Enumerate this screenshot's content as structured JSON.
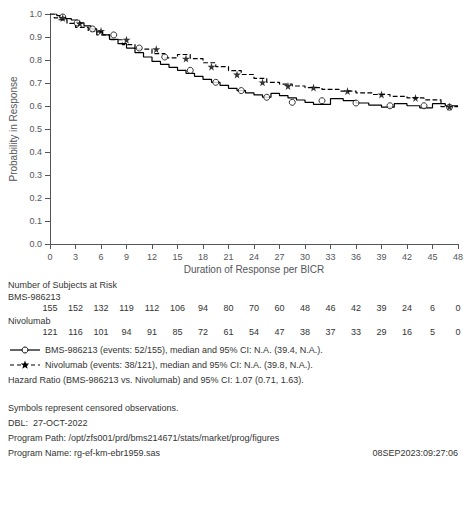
{
  "chart_data": {
    "type": "line",
    "xlabel": "Duration of Response per BICR",
    "ylabel": "Probability in Response",
    "xlim": [
      0,
      48
    ],
    "ylim": [
      0.0,
      1.0
    ],
    "xticks": [
      0,
      3,
      6,
      9,
      12,
      15,
      18,
      21,
      24,
      27,
      30,
      33,
      36,
      39,
      42,
      45,
      48
    ],
    "yticks": [
      {
        "value": 0.0,
        "label": "0.0"
      },
      0.1,
      0.2,
      0.3,
      0.4,
      0.5,
      0.6,
      0.7,
      0.8,
      0.9,
      {
        "value": 1.0,
        "label": "1.0"
      }
    ],
    "grid": false,
    "series": [
      {
        "name": "BMS-986213 (events: 52/155), median and 95% CI: N.A. (39.4, N.A.).",
        "color": "#000000",
        "line_style": "solid",
        "marker": "circle",
        "x": [
          0,
          0.8,
          0.8,
          1.2,
          1.2,
          1.8,
          1.8,
          2.5,
          2.5,
          3.2,
          3.2,
          4.0,
          4.0,
          4.8,
          4.8,
          5.5,
          5.5,
          6.2,
          6.2,
          7.0,
          7.0,
          8.0,
          8.0,
          9.0,
          9.0,
          10.0,
          10.0,
          11.0,
          11.0,
          12.0,
          12.0,
          13.0,
          13.0,
          14.0,
          14.0,
          15.0,
          15.0,
          16.0,
          16.0,
          17.0,
          17.0,
          18.0,
          18.0,
          19.0,
          19.0,
          20.0,
          20.0,
          21.0,
          21.0,
          22.0,
          22.0,
          23.0,
          23.0,
          24.0,
          24.0,
          25.0,
          25.0,
          26.0,
          26.0,
          27.0,
          27.0,
          28.0,
          28.0,
          29.0,
          29.0,
          30.0,
          30.0,
          31.0,
          31.0,
          33.0,
          33.0,
          34.5,
          34.5,
          36.0,
          36.0,
          37.5,
          37.5,
          39.0,
          39.0,
          40.5,
          40.5,
          42.0,
          42.0,
          43.5,
          43.5,
          45.0,
          45.0,
          46.5,
          46.5,
          48.0
        ],
        "values": [
          1.0,
          1.0,
          0.993,
          0.993,
          0.987,
          0.987,
          0.98,
          0.98,
          0.974,
          0.974,
          0.961,
          0.961,
          0.948,
          0.948,
          0.935,
          0.935,
          0.922,
          0.922,
          0.909,
          0.909,
          0.89,
          0.89,
          0.871,
          0.871,
          0.852,
          0.852,
          0.832,
          0.832,
          0.813,
          0.813,
          0.794,
          0.794,
          0.781,
          0.781,
          0.768,
          0.768,
          0.755,
          0.755,
          0.742,
          0.742,
          0.729,
          0.729,
          0.716,
          0.716,
          0.703,
          0.703,
          0.69,
          0.69,
          0.677,
          0.677,
          0.667,
          0.667,
          0.657,
          0.657,
          0.648,
          0.648,
          0.638,
          0.638,
          0.655,
          0.655,
          0.645,
          0.645,
          0.635,
          0.635,
          0.626,
          0.626,
          0.616,
          0.616,
          0.607,
          0.607,
          0.632,
          0.632,
          0.623,
          0.623,
          0.613,
          0.613,
          0.604,
          0.604,
          0.595,
          0.595,
          0.61,
          0.61,
          0.601,
          0.601,
          0.592,
          0.592,
          0.61,
          0.61,
          0.601,
          0.601
        ],
        "censored": {
          "x": [
            1.5,
            3.2,
            5.0,
            7.5,
            10.5,
            13.5,
            16.5,
            19.5,
            22.5,
            25.5,
            28.5,
            32.0,
            36.0,
            40.0,
            44.0,
            47.0
          ],
          "y": [
            0.987,
            0.961,
            0.935,
            0.909,
            0.852,
            0.813,
            0.755,
            0.703,
            0.667,
            0.638,
            0.616,
            0.623,
            0.613,
            0.601,
            0.601,
            0.595
          ]
        }
      },
      {
        "name": "Nivolumab (events: 38/121), median and 95% CI: N.A. (39.8, N.A.).",
        "color": "#000000",
        "line_style": "dashed",
        "marker": "star",
        "x": [
          0,
          0.5,
          0.5,
          1.0,
          1.0,
          2.0,
          2.0,
          3.0,
          3.0,
          4.5,
          4.5,
          5.5,
          5.5,
          7.0,
          7.0,
          8.5,
          8.5,
          10.0,
          10.0,
          12.0,
          12.0,
          13.5,
          13.5,
          15.0,
          15.0,
          16.5,
          16.5,
          18.0,
          18.0,
          19.5,
          19.5,
          21.0,
          21.0,
          22.5,
          22.5,
          24.0,
          24.0,
          25.5,
          25.5,
          27.0,
          27.0,
          28.5,
          28.5,
          30.0,
          30.0,
          32.0,
          32.0,
          34.0,
          34.0,
          36.0,
          36.0,
          38.0,
          38.0,
          40.0,
          40.0,
          42.0,
          42.0,
          44.0,
          44.0,
          46.0,
          46.0,
          48.0
        ],
        "values": [
          1.0,
          1.0,
          0.983,
          0.983,
          0.975,
          0.975,
          0.959,
          0.959,
          0.942,
          0.942,
          0.926,
          0.926,
          0.909,
          0.909,
          0.888,
          0.888,
          0.867,
          0.867,
          0.847,
          0.847,
          0.828,
          0.828,
          0.809,
          0.809,
          0.824,
          0.824,
          0.806,
          0.806,
          0.788,
          0.788,
          0.771,
          0.771,
          0.754,
          0.754,
          0.737,
          0.737,
          0.72,
          0.72,
          0.703,
          0.703,
          0.695,
          0.695,
          0.687,
          0.687,
          0.68,
          0.68,
          0.672,
          0.672,
          0.665,
          0.665,
          0.657,
          0.657,
          0.65,
          0.65,
          0.642,
          0.642,
          0.635,
          0.635,
          0.627,
          0.627,
          0.597,
          0.597
        ],
        "censored": {
          "x": [
            1.5,
            3.5,
            6.0,
            9.0,
            12.5,
            16.0,
            19.0,
            22.0,
            25.0,
            28.0,
            31.0,
            35.0,
            39.0,
            43.0,
            47.0
          ],
          "y": [
            0.983,
            0.959,
            0.926,
            0.888,
            0.847,
            0.806,
            0.771,
            0.737,
            0.703,
            0.687,
            0.68,
            0.665,
            0.65,
            0.635,
            0.597
          ]
        }
      }
    ],
    "annotations": [
      "Hazard Ratio (BMS-986213 vs. Nivolumab) and 95% CI: 1.07 (0.71, 1.63)."
    ],
    "risk_table": {
      "title": "Number of Subjects at Risk",
      "times": [
        0,
        3,
        6,
        9,
        12,
        15,
        18,
        21,
        24,
        27,
        30,
        33,
        36,
        39,
        42,
        45,
        48
      ],
      "rows": [
        {
          "label": "BMS-986213",
          "values": [
            155,
            152,
            132,
            119,
            112,
            106,
            94,
            80,
            70,
            60,
            48,
            46,
            42,
            39,
            24,
            6,
            0
          ]
        },
        {
          "label": "Nivolumab",
          "values": [
            121,
            116,
            101,
            94,
            91,
            85,
            72,
            61,
            54,
            47,
            38,
            37,
            33,
            29,
            16,
            5,
            0
          ]
        }
      ]
    },
    "footnotes": [
      "Symbols represent censored observations.",
      "DBL:  27-OCT-2022",
      "Program Path: /opt/zfs001/prd/bms214671/stats/market/prog/figures",
      "Program Name: rg-ef-km-ebr1959.sas"
    ],
    "footnote_right": "08SEP2023:09:27:06"
  }
}
